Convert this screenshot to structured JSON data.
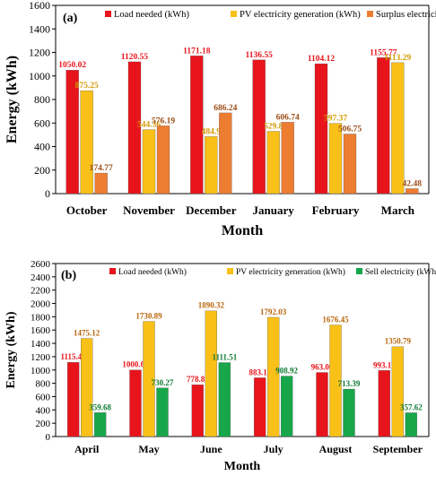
{
  "chart_data": [
    {
      "type": "bar",
      "panel_label": "(a)",
      "categories": [
        "October",
        "November",
        "December",
        "January",
        "February",
        "March"
      ],
      "series": [
        {
          "name": "Load needed (kWh)",
          "values": [
            1050.02,
            1120.55,
            1171.18,
            1136.55,
            1104.12,
            1155.77
          ],
          "color": "#e8141c",
          "label_color": "#e8141c"
        },
        {
          "name": "PV electricity generation (kWh)",
          "values": [
            875.25,
            544.36,
            484.9,
            529.8,
            597.37,
            1113.29
          ],
          "color": "#f9c018",
          "label_color": "#d39a00"
        },
        {
          "name": "Surplus electricity (kWh)",
          "values": [
            174.77,
            576.19,
            686.24,
            606.74,
            506.75,
            42.48
          ],
          "color": "#ed7d31",
          "label_color": "#9a4c14"
        }
      ],
      "data_labels": [
        [
          "1050.02",
          "1120.55",
          "1171.18",
          "1136.55",
          "1104.12",
          "1155.77"
        ],
        [
          "875.25",
          "544.36",
          "484.9",
          "529.8",
          "597.37",
          "1113.29"
        ],
        [
          "174.77",
          "576.19",
          "686.24",
          "606.74",
          "506.75",
          "42.48"
        ]
      ],
      "xlabel": "Month",
      "ylabel": "Energy (kWh)",
      "ylim": [
        0,
        1600
      ],
      "yticks": [
        0,
        200,
        400,
        600,
        800,
        1000,
        1200,
        1400,
        1600
      ],
      "legend": "top-inside"
    },
    {
      "type": "bar",
      "panel_label": "(b)",
      "categories": [
        "April",
        "May",
        "June",
        "July",
        "August",
        "September"
      ],
      "series": [
        {
          "name": "Load needed (kWh)",
          "values": [
            1115.44,
            1000.62,
            778.81,
            883.11,
            963.06,
            993.17
          ],
          "color": "#e8141c",
          "label_color": "#e8141c"
        },
        {
          "name": "PV electricity generation (kWh)",
          "values": [
            1475.12,
            1730.89,
            1890.32,
            1792.03,
            1676.45,
            1350.79
          ],
          "color": "#f9c018",
          "label_color": "#b8670e"
        },
        {
          "name": "Sell electricity (kWh)",
          "values": [
            359.68,
            730.27,
            1111.51,
            908.92,
            713.39,
            357.62
          ],
          "color": "#17a64a",
          "label_color": "#0f7a33"
        }
      ],
      "data_labels": [
        [
          "1115.44",
          "1000.62",
          "778.81",
          "883.11",
          "963.06",
          "993.17"
        ],
        [
          "1475.12",
          "1730.89",
          "1890.32",
          "1792.03",
          "1676.45",
          "1350.79"
        ],
        [
          "359.68",
          "730.27",
          "1111.51",
          "908.92",
          "713.39",
          "357.62"
        ]
      ],
      "xlabel": "Month",
      "ylabel": "Energy (kWh)",
      "ylim": [
        0,
        2600
      ],
      "yticks": [
        0,
        200,
        400,
        600,
        800,
        1000,
        1200,
        1400,
        1600,
        1800,
        2000,
        2200,
        2400,
        2600
      ],
      "legend": "top-inside"
    }
  ]
}
